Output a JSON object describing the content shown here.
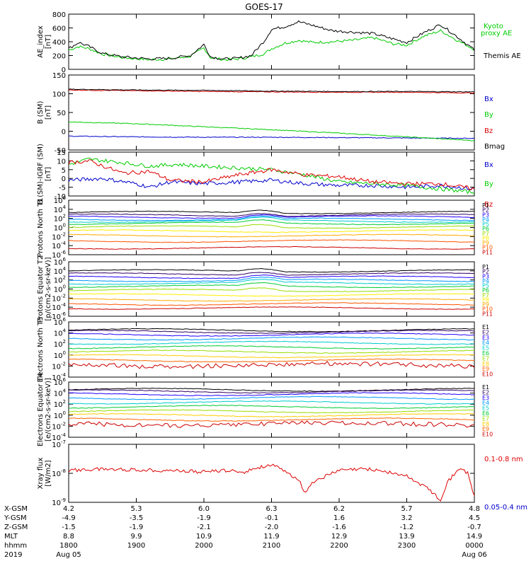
{
  "title": "GOES-17",
  "colors": {
    "black": "#000000",
    "red": "#dd0000",
    "green": "#00cc00",
    "blue": "#0000cc",
    "proton_bands": [
      "#000000",
      "#330066",
      "#2200ff",
      "#0099ff",
      "#00cccc",
      "#00cc33",
      "#99dd00",
      "#ffee00",
      "#ffaa00",
      "#ff5500",
      "#cc0000"
    ],
    "electron_bands": [
      "#000000",
      "#330066",
      "#2200ff",
      "#0099ff",
      "#00cccc",
      "#00cc33",
      "#99dd00",
      "#ffcc00",
      "#ff6600",
      "#cc0000"
    ]
  },
  "chart_data": [
    {
      "type": "line",
      "id": "ae",
      "ylabel": "AE_index [nT]",
      "ylim": [
        0,
        800
      ],
      "yticks": [
        "0",
        "200",
        "400",
        "600",
        "800"
      ],
      "x_hours": [
        0,
        0.15,
        0.3,
        0.5,
        0.8,
        1.2,
        1.5,
        1.8,
        2.0,
        2.1,
        2.3,
        2.5,
        2.7,
        2.9,
        3.0,
        3.2,
        3.4,
        3.6,
        3.9,
        4.2,
        4.5,
        4.8,
        5.0,
        5.25,
        5.5,
        5.75,
        6.0
      ],
      "series": [
        {
          "name": "Kyoto proxy AE",
          "color": "green",
          "values": [
            280,
            330,
            300,
            220,
            170,
            140,
            150,
            190,
            310,
            170,
            140,
            150,
            180,
            230,
            300,
            380,
            420,
            390,
            400,
            420,
            460,
            370,
            350,
            480,
            560,
            420,
            290
          ]
        },
        {
          "name": "Themis AE",
          "color": "black",
          "values": [
            300,
            390,
            330,
            230,
            180,
            150,
            160,
            200,
            360,
            180,
            150,
            160,
            200,
            420,
            580,
            620,
            690,
            640,
            560,
            540,
            520,
            440,
            390,
            530,
            650,
            470,
            280
          ]
        }
      ],
      "legend": [
        "Kyoto",
        "proxy AE",
        "Themis AE"
      ]
    },
    {
      "type": "line",
      "id": "bsm",
      "ylabel": "B (SM) [nT]",
      "ylim": [
        -50,
        150
      ],
      "yticks": [
        "-50",
        "0",
        "50",
        "100",
        "150"
      ],
      "series": [
        {
          "name": "Bx",
          "color": "blue",
          "x_hours": [
            0,
            1,
            2,
            3,
            4,
            5,
            6
          ],
          "values": [
            -13,
            -15,
            -16,
            -16,
            -17,
            -18,
            -19
          ]
        },
        {
          "name": "By",
          "color": "green",
          "x_hours": [
            0,
            1,
            2,
            3,
            4,
            5,
            6
          ],
          "values": [
            25,
            20,
            12,
            4,
            -5,
            -15,
            -25
          ]
        },
        {
          "name": "Bz",
          "color": "red",
          "x_hours": [
            0,
            1,
            2,
            3,
            4,
            5,
            6
          ],
          "values": [
            110,
            108,
            106,
            105,
            104,
            104,
            102
          ]
        },
        {
          "name": "Bmag",
          "color": "black",
          "x_hours": [
            0,
            1,
            2,
            3,
            4,
            5,
            6
          ],
          "values": [
            112,
            110,
            109,
            107,
            106,
            106,
            105
          ]
        }
      ]
    },
    {
      "type": "line",
      "id": "bigrf",
      "ylabel": "B (SM)-IGRF (SM) [nT]",
      "ylim": [
        -10,
        15
      ],
      "yticks": [
        "-10",
        "-5",
        "0",
        "5",
        "10",
        "15"
      ],
      "series": [
        {
          "name": "Bx",
          "color": "blue",
          "x_hours": [
            0,
            0.5,
            1,
            1.2,
            1.5,
            2,
            2.5,
            3,
            3.5,
            4,
            4.5,
            5,
            5.5,
            6
          ],
          "values": [
            -1,
            0,
            -3,
            -5,
            -2,
            -3,
            -2,
            -1,
            -3,
            -4,
            -4,
            -5,
            -4,
            -6
          ]
        },
        {
          "name": "By",
          "color": "green",
          "x_hours": [
            0,
            0.3,
            0.8,
            1.2,
            1.6,
            2,
            2.5,
            3,
            3.5,
            4,
            4.5,
            5,
            5.5,
            6
          ],
          "values": [
            8,
            11,
            9,
            7,
            8,
            7,
            6,
            5,
            2,
            -2,
            -3,
            -4,
            -6,
            -8
          ]
        },
        {
          "name": "Bz",
          "color": "red",
          "x_hours": [
            0,
            0.3,
            0.8,
            1.2,
            1.5,
            2,
            2.5,
            3,
            3.5,
            4,
            4.5,
            5,
            5.5,
            6
          ],
          "values": [
            9,
            10,
            3,
            4,
            -1,
            -2,
            2,
            5,
            2,
            1,
            -2,
            -3,
            -3,
            -6
          ]
        }
      ]
    },
    {
      "type": "line",
      "id": "pn",
      "ylabel": "Protons North T1",
      "ylim_log": [
        -6,
        6
      ],
      "yticks": [
        "10^-6",
        "10^-4",
        "10^-2",
        "10^0",
        "10^2",
        "10^4",
        "10^6"
      ],
      "series_names": [
        "P1",
        "P2",
        "P3",
        "P4",
        "P5",
        "P6",
        "P7",
        "P8",
        "P9",
        "P10",
        "P11"
      ],
      "levels_log": [
        3.3,
        2.7,
        2.3,
        1.8,
        1.4,
        0.9,
        0.1,
        -0.8,
        -1.8,
        -3.0,
        -4.5
      ]
    },
    {
      "type": "line",
      "id": "pe",
      "ylabel": "Protons Equator T2 [p/(cm2-s-sr-keV)]",
      "ylim_log": [
        -6,
        6
      ],
      "yticks": [
        "10^-6",
        "10^-4",
        "10^-2",
        "10^0",
        "10^2",
        "10^4",
        "10^6"
      ],
      "series_names": [
        "P1",
        "P2",
        "P3",
        "P4",
        "P5",
        "P6",
        "P7",
        "P8",
        "P9",
        "P10",
        "P11"
      ],
      "levels_log": [
        4.0,
        3.3,
        2.6,
        1.9,
        1.3,
        0.6,
        -0.3,
        -1.3,
        -2.4,
        -3.3,
        -4.2
      ]
    },
    {
      "type": "line",
      "id": "en",
      "ylabel": "Electrons North T3",
      "ylim_log": [
        -4,
        6
      ],
      "yticks": [
        "10^-4",
        "10^-2",
        "10^0",
        "10^2",
        "10^4",
        "10^6"
      ],
      "series_names": [
        "E1",
        "E2",
        "E3",
        "E4",
        "E5",
        "E6",
        "E7",
        "E8",
        "E9",
        "E10"
      ],
      "levels_log": [
        4.5,
        4.2,
        3.7,
        3.0,
        2.2,
        1.4,
        0.6,
        -0.2,
        -1.0,
        -1.8
      ]
    },
    {
      "type": "line",
      "id": "ee",
      "ylabel": "Electrons Equator T4 [e/(cm2-s-sr-keV)]",
      "ylim_log": [
        -4,
        6
      ],
      "yticks": [
        "10^-4",
        "10^-2",
        "10^0",
        "10^2",
        "10^4",
        "10^6"
      ],
      "series_names": [
        "E1",
        "E2",
        "E3",
        "E4",
        "E5",
        "E6",
        "E7",
        "E8",
        "E9",
        "E10"
      ],
      "levels_log": [
        4.6,
        4.3,
        3.8,
        3.1,
        2.3,
        1.5,
        0.7,
        0.0,
        -0.8,
        -1.6
      ]
    },
    {
      "type": "line",
      "id": "xray",
      "ylabel": "Xray flux [W/m2]",
      "ylim_log": [
        -9,
        -7
      ],
      "yticks": [
        "10^-9",
        "10^-8",
        "10^-7"
      ],
      "series": [
        {
          "name": "0.1-0.8 nm",
          "color": "red",
          "x_hours": [
            0,
            0.5,
            1,
            1.5,
            2,
            2.3,
            2.6,
            2.8,
            3.0,
            3.2,
            3.4,
            3.5,
            3.6,
            4.0,
            4.4,
            4.6,
            4.8,
            5.0,
            5.3,
            5.5,
            5.6,
            5.8,
            5.9,
            6.0
          ],
          "values_log": [
            -7.9,
            -7.85,
            -7.88,
            -7.9,
            -7.95,
            -7.9,
            -7.95,
            -7.8,
            -7.7,
            -7.95,
            -8.2,
            -8.7,
            -8.3,
            -7.9,
            -7.85,
            -7.9,
            -8.0,
            -8.1,
            -8.5,
            -8.9,
            -8.3,
            -7.8,
            -8.0,
            -8.8
          ]
        },
        {
          "name": "0.05-0.4 nm",
          "color": "blue",
          "x_hours": [],
          "values_log": []
        }
      ]
    }
  ],
  "orbit_table": {
    "row_labels": [
      "X-GSM",
      "Y-GSM",
      "Z-GSM",
      "MLT",
      "hhmm",
      "2019"
    ],
    "columns": [
      [
        "4.2",
        "-4.9",
        "-1.5",
        "8.8",
        "1800",
        "Aug 05"
      ],
      [
        "5.3",
        "-3.5",
        "-1.9",
        "9.9",
        "1900",
        ""
      ],
      [
        "6.0",
        "-1.9",
        "-2.1",
        "10.9",
        "2000",
        ""
      ],
      [
        "6.3",
        "-0.1",
        "-2.0",
        "11.9",
        "2100",
        ""
      ],
      [
        "6.2",
        "1.6",
        "-1.6",
        "12.9",
        "2200",
        ""
      ],
      [
        "5.7",
        "3.2",
        "-1.2",
        "13.9",
        "2300",
        ""
      ],
      [
        "4.8",
        "4.5",
        "-0.7",
        "14.9",
        "0000",
        "Aug 06"
      ]
    ]
  }
}
